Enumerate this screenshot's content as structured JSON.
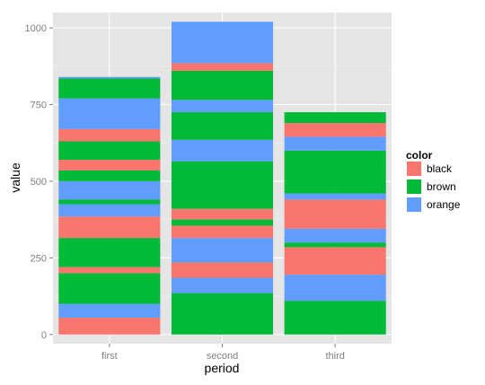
{
  "chart_data": {
    "type": "bar",
    "stacked": true,
    "xlabel": "period",
    "ylabel": "value",
    "ylim": [
      -30,
      1050
    ],
    "y_ticks": [
      0,
      250,
      500,
      750,
      1000
    ],
    "grid": true,
    "legend_position": "right",
    "legend": {
      "title": "color",
      "entries": [
        {
          "label": "black",
          "color": "#F8766D"
        },
        {
          "label": "brown",
          "color": "#00BA38"
        },
        {
          "label": "orange",
          "color": "#619CFF"
        }
      ]
    },
    "colors": {
      "black": "#F8766D",
      "brown": "#00BA38",
      "orange": "#619CFF"
    },
    "categories": [
      "first",
      "second",
      "third"
    ],
    "stacks": [
      [
        {
          "color": "black",
          "value": 55
        },
        {
          "color": "orange",
          "value": 45
        },
        {
          "color": "brown",
          "value": 100
        },
        {
          "color": "black",
          "value": 20
        },
        {
          "color": "brown",
          "value": 95
        },
        {
          "color": "black",
          "value": 70
        },
        {
          "color": "orange",
          "value": 40
        },
        {
          "color": "brown",
          "value": 15
        },
        {
          "color": "orange",
          "value": 60
        },
        {
          "color": "brown",
          "value": 35
        },
        {
          "color": "black",
          "value": 35
        },
        {
          "color": "brown",
          "value": 60
        },
        {
          "color": "black",
          "value": 40
        },
        {
          "color": "orange",
          "value": 100
        },
        {
          "color": "brown",
          "value": 65
        },
        {
          "color": "orange",
          "value": 5
        }
      ],
      [
        {
          "color": "brown",
          "value": 135
        },
        {
          "color": "orange",
          "value": 50
        },
        {
          "color": "black",
          "value": 50
        },
        {
          "color": "orange",
          "value": 80
        },
        {
          "color": "black",
          "value": 40
        },
        {
          "color": "brown",
          "value": 20
        },
        {
          "color": "black",
          "value": 35
        },
        {
          "color": "brown",
          "value": 155
        },
        {
          "color": "orange",
          "value": 70
        },
        {
          "color": "brown",
          "value": 90
        },
        {
          "color": "orange",
          "value": 40
        },
        {
          "color": "brown",
          "value": 95
        },
        {
          "color": "black",
          "value": 25
        },
        {
          "color": "orange",
          "value": 135
        }
      ],
      [
        {
          "color": "brown",
          "value": 110
        },
        {
          "color": "orange",
          "value": 85
        },
        {
          "color": "black",
          "value": 90
        },
        {
          "color": "brown",
          "value": 15
        },
        {
          "color": "orange",
          "value": 45
        },
        {
          "color": "black",
          "value": 95
        },
        {
          "color": "orange",
          "value": 20
        },
        {
          "color": "brown",
          "value": 140
        },
        {
          "color": "orange",
          "value": 45
        },
        {
          "color": "black",
          "value": 45
        },
        {
          "color": "brown",
          "value": 35
        }
      ]
    ]
  }
}
